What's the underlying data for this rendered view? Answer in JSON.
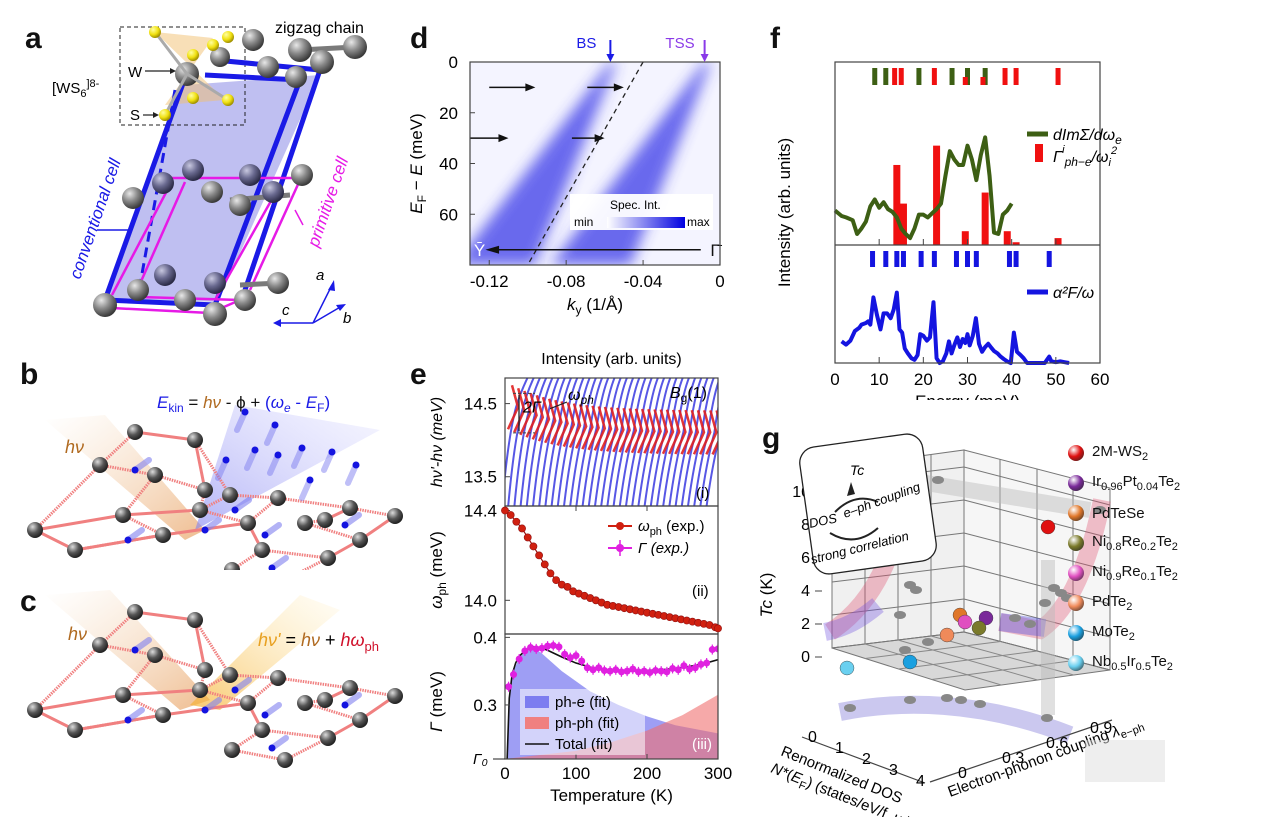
{
  "panels": {
    "a": {
      "label": "a",
      "zigzag": "zigzag chain",
      "cluster": "[WS",
      "cluster_sub": "6",
      "cluster_sup": "]8-",
      "w_label": "W",
      "s_label": "S",
      "conventional": "conventional cell",
      "primitive": "primitive cell",
      "axis_a": "a",
      "axis_b": "b",
      "axis_c": "c",
      "colors": {
        "conventional": "#1a1ae6",
        "primitive": "#e61ae6",
        "W": "#8a8a8a",
        "S": "#f2e21a"
      }
    },
    "b": {
      "label": "b",
      "hv": "hν",
      "equation": "E_kin = hν - φ + (ω_e - E_F)"
    },
    "c": {
      "label": "c",
      "hv": "hν",
      "equation": "hν' = hν + hω_ph"
    },
    "d": {
      "label": "d",
      "bs": "BS",
      "tss": "TSS",
      "colorbar_title": "Spec. Int.",
      "cb_min": "min",
      "cb_max": "max",
      "Ybar": "Ȳ",
      "Gbar": "Γ̄"
    },
    "e": {
      "label": "e",
      "top_title": "Intensity (arb. units)",
      "bg": "B_g(1)",
      "omega_ph": "ω_ph",
      "two_gamma": "2Γ",
      "sub_i": "(i)",
      "sub_ii": "(ii)",
      "sub_iii": "(iii)",
      "gamma0": "Γ₀"
    },
    "f": {
      "label": "f"
    },
    "g": {
      "label": "g",
      "inset_tc": "Tc",
      "inset_dos": "DOS",
      "inset_eph": "e–ph coupling",
      "inset_corr": "strong correlation"
    }
  },
  "chart_data": [
    {
      "id": "d",
      "type": "heatmap",
      "title": "",
      "xlabel": "k_y (1/Å)",
      "ylabel": "E_F − E (meV)",
      "xlim": [
        -0.13,
        0.0
      ],
      "ylim": [
        80,
        0
      ],
      "xticks": [
        "-0.12",
        "-0.08",
        "-0.04",
        "0"
      ],
      "xtick_values": [
        -0.12,
        -0.08,
        -0.04,
        0
      ],
      "yticks": [
        "0",
        "20",
        "40",
        "60"
      ],
      "ytick_values": [
        0,
        20,
        40,
        60
      ],
      "bands": [
        {
          "name": "BS",
          "kF": -0.057,
          "k_at_80meV": -0.125
        },
        {
          "name": "TSS",
          "kF": -0.008,
          "k_at_80meV": -0.075
        }
      ],
      "dashed_line": {
        "k_at_0": -0.04,
        "k_at_80": -0.1
      },
      "annotations": [
        "BS",
        "TSS",
        "Ȳ",
        "Γ̄"
      ],
      "colorbar": {
        "title": "Spec. Int.",
        "min": "min",
        "max": "max"
      }
    },
    {
      "id": "e_i",
      "type": "line",
      "title": "Intensity (arb. units)",
      "ylabel": "hν'-hν (meV)",
      "yticks": [
        "14.5",
        "13.5"
      ],
      "ytick_values": [
        14.5,
        13.5
      ],
      "ylim": [
        13.1,
        14.85
      ],
      "annotations": [
        "B_g(1)",
        "ω_ph",
        "2Γ",
        "(i)"
      ]
    },
    {
      "id": "e_ii",
      "type": "scatter",
      "ylabel": "ω_ph (meV)",
      "yticks": [
        "14.4",
        "14.0"
      ],
      "ytick_values": [
        14.4,
        14.0
      ],
      "xlim": [
        0,
        300
      ],
      "ylim": [
        13.85,
        14.42
      ],
      "legend": [
        "ω_ph (exp.)",
        "Γ (exp.)"
      ],
      "legend_position": "top-right",
      "series": [
        {
          "name": "ω_ph (exp.)",
          "x": [
            0,
            8,
            16,
            24,
            32,
            40,
            48,
            56,
            64,
            72,
            80,
            88,
            96,
            104,
            112,
            120,
            128,
            136,
            144,
            152,
            160,
            168,
            176,
            184,
            192,
            200,
            208,
            216,
            224,
            232,
            240,
            248,
            256,
            264,
            272,
            280,
            288,
            296,
            300
          ],
          "y": [
            14.4,
            14.38,
            14.35,
            14.32,
            14.28,
            14.24,
            14.2,
            14.16,
            14.12,
            14.09,
            14.07,
            14.06,
            14.04,
            14.03,
            14.02,
            14.01,
            14.0,
            13.99,
            13.98,
            13.975,
            13.97,
            13.965,
            13.96,
            13.955,
            13.95,
            13.945,
            13.94,
            13.935,
            13.93,
            13.925,
            13.92,
            13.915,
            13.91,
            13.905,
            13.9,
            13.895,
            13.89,
            13.88,
            13.875
          ]
        }
      ],
      "annotations": [
        "(ii)"
      ]
    },
    {
      "id": "e_iii",
      "type": "area",
      "xlabel": "Temperature (K)",
      "ylabel": "Γ (meV)",
      "xticks": [
        "0",
        "100",
        "200",
        "300"
      ],
      "xtick_values": [
        0,
        100,
        200,
        300
      ],
      "yticks": [
        "0.4",
        "0.3"
      ],
      "ytick_values": [
        0.4,
        0.3
      ],
      "xlim": [
        0,
        300
      ],
      "ylim": [
        0.22,
        0.405
      ],
      "legend": [
        "ph-e (fit)",
        "ph-ph (fit)",
        "Total (fit)"
      ],
      "legend_position": "bottom-left",
      "series": [
        {
          "name": "Γ (exp.)",
          "x": [
            5,
            12,
            20,
            28,
            36,
            44,
            52,
            60,
            68,
            76,
            84,
            92,
            100,
            108,
            116,
            124,
            132,
            140,
            148,
            156,
            164,
            172,
            180,
            188,
            196,
            204,
            212,
            220,
            228,
            236,
            244,
            252,
            260,
            268,
            276,
            284,
            292,
            300
          ],
          "y": [
            0.327,
            0.345,
            0.368,
            0.38,
            0.385,
            0.383,
            0.384,
            0.387,
            0.388,
            0.386,
            0.375,
            0.37,
            0.373,
            0.365,
            0.355,
            0.352,
            0.355,
            0.351,
            0.35,
            0.352,
            0.349,
            0.35,
            0.353,
            0.349,
            0.35,
            0.348,
            0.351,
            0.35,
            0.349,
            0.354,
            0.352,
            0.358,
            0.353,
            0.355,
            0.36,
            0.362,
            0.382,
            0.383
          ]
        },
        {
          "name": "Total (fit)",
          "x": [
            3,
            6,
            10,
            15,
            20,
            30,
            40,
            50,
            60,
            80,
            100,
            120,
            140,
            160,
            180,
            200,
            220,
            240,
            260,
            280,
            300
          ],
          "y": [
            0.22,
            0.31,
            0.345,
            0.362,
            0.372,
            0.382,
            0.386,
            0.385,
            0.381,
            0.371,
            0.362,
            0.356,
            0.352,
            0.35,
            0.35,
            0.351,
            0.352,
            0.354,
            0.357,
            0.361,
            0.367
          ]
        },
        {
          "name": "ph-e (fit)",
          "x": [
            3,
            6,
            10,
            20,
            30,
            40,
            50,
            80,
            120,
            160,
            200,
            240,
            300
          ],
          "y": [
            0.22,
            0.31,
            0.345,
            0.37,
            0.38,
            0.383,
            0.378,
            0.35,
            0.32,
            0.3,
            0.283,
            0.27,
            0.258
          ]
        },
        {
          "name": "ph-ph (fit)",
          "x": [
            0,
            100,
            150,
            200,
            250,
            300
          ],
          "y": [
            0.22,
            0.232,
            0.245,
            0.262,
            0.285,
            0.315
          ]
        }
      ],
      "annotations": [
        "Γ₀",
        "(iii)"
      ]
    },
    {
      "id": "f",
      "type": "line",
      "xlabel": "Energy (meV)",
      "ylabel": "Intensity (arb. units)",
      "xlim": [
        0,
        60
      ],
      "xticks": [
        "0",
        "10",
        "20",
        "30",
        "40",
        "50",
        "60"
      ],
      "xtick_values": [
        0,
        10,
        20,
        30,
        40,
        50,
        60
      ],
      "legend": [
        "dImΣ/dω_e",
        "Γ^i_ph−e/ω_i²",
        "α²F/ω"
      ],
      "legend_position": "right",
      "colors": {
        "dImSigma": "#3d5f14",
        "gamma_bars": "#f01010",
        "a2F": "#1414e0"
      },
      "top_panel": {
        "ylim": [
          0,
          1
        ],
        "series": [
          {
            "name": "dImΣ/dω_e",
            "x": [
              0,
              1.5,
              2.5,
              4,
              5,
              6,
              7,
              8,
              9,
              10,
              11,
              12,
              13,
              14,
              15,
              16,
              17,
              18,
              19,
              20,
              21,
              22,
              23,
              24,
              25,
              26,
              27,
              28,
              29,
              30,
              31,
              32,
              33,
              34,
              35,
              36,
              37,
              38,
              39,
              40
            ],
            "y": [
              0.25,
              0.21,
              0.2,
              0.18,
              0.08,
              0.12,
              0.17,
              0.28,
              0.33,
              0.27,
              0.31,
              0.26,
              0.24,
              0.2,
              0.12,
              0.08,
              0.05,
              0.12,
              0.22,
              0.22,
              0.2,
              0.23,
              0.26,
              0.3,
              0.5,
              0.68,
              0.62,
              0.58,
              0.58,
              0.72,
              0.62,
              0.47,
              0.65,
              0.78,
              0.5,
              0.09,
              0.08,
              0.22,
              0.25,
              0.3
            ]
          },
          {
            "name": "Γ^i_ph−e/ω_i²",
            "type": "bar",
            "x": [
              14,
              15.5,
              23,
              29.5,
              34,
              39,
              41,
              50.5
            ],
            "y": [
              0.58,
              0.3,
              0.72,
              0.1,
              0.38,
              0.1,
              0.02,
              0.05
            ]
          }
        ],
        "top_ticks_green": [
          9,
          11.5,
          19,
          26.5,
          30,
          34
        ],
        "top_ticks_red": [
          13.5,
          15,
          22.5,
          29.5,
          33.5,
          38.5,
          41,
          50.5
        ]
      },
      "bottom_panel": {
        "ylim": [
          0,
          1
        ],
        "series": [
          {
            "name": "α²F/ω",
            "x": [
              1.5,
              2.5,
              3.5,
              4.5,
              5.5,
              6,
              7,
              7.5,
              8,
              8.7,
              9.5,
              10.3,
              11,
              11.8,
              12.6,
              13.3,
              14,
              14.6,
              15.2,
              15.8,
              16.5,
              17.3,
              18,
              18.7,
              19.3,
              20,
              20.8,
              21.5,
              22.3,
              23,
              23.7,
              24.4,
              25.2,
              25.8,
              26.4,
              27,
              27.7,
              28.3,
              28.9,
              29.5,
              30,
              30.5,
              31.2,
              31.9,
              32.6,
              33.3,
              34,
              34.7,
              35.4,
              36,
              36.8,
              37.5,
              38.2,
              39,
              39.8,
              40.5,
              41.2,
              42,
              42.7,
              43.5,
              44.2,
              45,
              46,
              47,
              47.5,
              48,
              48.5,
              49,
              50,
              51,
              52,
              53
            ],
            "y": [
              0.27,
              0.23,
              0.28,
              0.4,
              0.44,
              0.48,
              0.5,
              0.52,
              0.48,
              0.82,
              0.6,
              0.42,
              0.62,
              0.62,
              0.56,
              0.67,
              0.88,
              0.42,
              0.38,
              0.18,
              0.12,
              0.06,
              0.04,
              0.1,
              0.36,
              0.34,
              0.28,
              0.32,
              0.76,
              0.06,
              0,
              0.02,
              0.12,
              0.27,
              0.12,
              0.22,
              0.32,
              0.2,
              0.3,
              0.25,
              0.36,
              0.22,
              0.34,
              0.56,
              0.24,
              0.14,
              0.2,
              0.24,
              0.19,
              0.15,
              0.12,
              0.08,
              0.05,
              0.02,
              0,
              0.38,
              0.14,
              0.1,
              0.06,
              0,
              0,
              0,
              0,
              0,
              0,
              0.04,
              0.08,
              0.02,
              0.01,
              0.02,
              0.01,
              0
            ]
          }
        ],
        "top_ticks_blue": [
          8.5,
          11.5,
          14,
          15.5,
          19.5,
          22.5,
          27.5,
          30,
          32,
          39.5,
          41,
          48.5
        ]
      }
    },
    {
      "id": "g",
      "type": "scatter",
      "title": "",
      "xlabel": "Renormalized DOS N*(E_F) (states/eV/f. u.)",
      "ylabel": "Tc (K)",
      "zlabel": "Electron-phonon coupling λ_e−ph",
      "xticks": [
        "0",
        "1",
        "2",
        "3",
        "4"
      ],
      "yticks": [
        "0",
        "2",
        "4",
        "6",
        "8",
        "10"
      ],
      "zticks": [
        "0",
        "0.3",
        "0.6",
        "0.9"
      ],
      "legend_position": "right",
      "legend": [
        {
          "name": "2M-WS₂",
          "color": "#e01010"
        },
        {
          "name": "Ir₀.₉₆Pt₀.₀₄Te₂",
          "color": "#7a2a9a"
        },
        {
          "name": "PdTeSe",
          "color": "#e0772a"
        },
        {
          "name": "Ni₀.₈Re₀.₂Te₂",
          "color": "#7a7a2a"
        },
        {
          "name": "Ni₀.₉Re₀.₁Te₂",
          "color": "#e04fc0"
        },
        {
          "name": "PdTe₂",
          "color": "#f08a5a"
        },
        {
          "name": "MoTe₂",
          "color": "#1aa0e0"
        },
        {
          "name": "Nb₀.₅Ir₀.₅Te₂",
          "color": "#6ad0f0"
        }
      ]
    }
  ],
  "legend_labels": {
    "f_green": "dImΣ/dω",
    "f_green_sub": "e",
    "f_red_main": "Γ",
    "f_red_sup": "i",
    "f_red_sub": "ph−e",
    "f_red_tail": "/ω",
    "f_red_tail_sub": "i",
    "f_red_tail_sup": "2",
    "f_blue": "α²F/ω",
    "e_ii_red": "ω",
    "e_ii_red_sub": "ph",
    "e_ii_red_tail": " (exp.)",
    "e_ii_mag": "Γ (exp.)",
    "e_iii_phe": "ph-e (fit)",
    "e_iii_phph": "ph-ph (fit)",
    "e_iii_total": "Total (fit)"
  },
  "g_legend": [
    {
      "base": "2M-WS",
      "parts": [
        [
          "2M-WS",
          ""
        ],
        [
          "2",
          "sub"
        ]
      ]
    },
    {
      "parts": [
        [
          "Ir",
          ""
        ],
        [
          "0.96",
          "sub"
        ],
        [
          "Pt",
          ""
        ],
        [
          "0.04",
          "sub"
        ],
        [
          "Te",
          ""
        ],
        [
          "2",
          "sub"
        ]
      ]
    },
    {
      "parts": [
        [
          "PdTeSe",
          ""
        ]
      ]
    },
    {
      "parts": [
        [
          "Ni",
          ""
        ],
        [
          "0.8",
          "sub"
        ],
        [
          "Re",
          ""
        ],
        [
          "0.2",
          "sub"
        ],
        [
          "Te",
          ""
        ],
        [
          "2",
          "sub"
        ]
      ]
    },
    {
      "parts": [
        [
          "Ni",
          ""
        ],
        [
          "0.9",
          "sub"
        ],
        [
          "Re",
          ""
        ],
        [
          "0.1",
          "sub"
        ],
        [
          "Te",
          ""
        ],
        [
          "2",
          "sub"
        ]
      ]
    },
    {
      "parts": [
        [
          "PdTe",
          ""
        ],
        [
          "2",
          "sub"
        ]
      ]
    },
    {
      "parts": [
        [
          "MoTe",
          ""
        ],
        [
          "2",
          "sub"
        ]
      ]
    },
    {
      "parts": [
        [
          "Nb",
          ""
        ],
        [
          "0.5",
          "sub"
        ],
        [
          "Ir",
          ""
        ],
        [
          "0.5",
          "sub"
        ],
        [
          "Te",
          ""
        ],
        [
          "2",
          "sub"
        ]
      ]
    }
  ]
}
